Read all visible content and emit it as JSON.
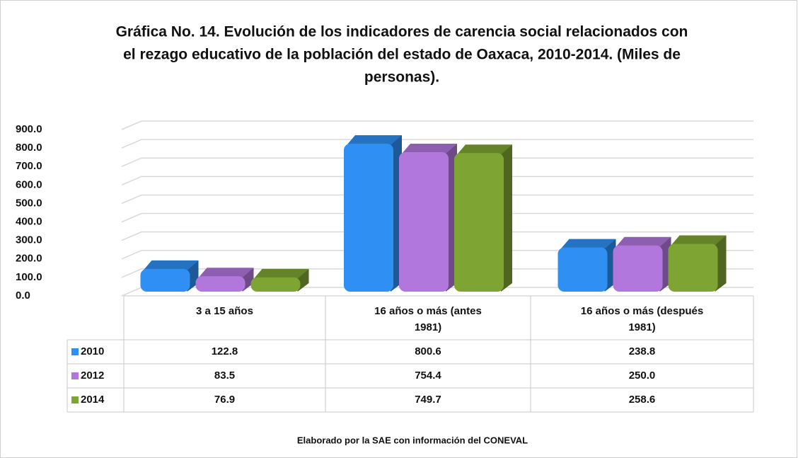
{
  "chart_data": {
    "type": "bar",
    "title": [
      "Gráfica No. 14. Evolución de los indicadores de carencia social relacionados con",
      "el rezago educativo de la población del estado de Oaxaca, 2010-2014. (Miles de",
      "personas)."
    ],
    "categories": [
      [
        "3 a 15 años"
      ],
      [
        "16 años o más (antes",
        "1981)"
      ],
      [
        "16 años o más (después",
        "1981)"
      ]
    ],
    "series": [
      {
        "name": "2010",
        "color": "#2f8ff2",
        "values": [
          122.8,
          800.6,
          238.8
        ],
        "value_labels": [
          "122.8",
          "800.6",
          "238.8"
        ]
      },
      {
        "name": "2012",
        "color": "#b277dc",
        "values": [
          83.5,
          754.4,
          250.0
        ],
        "value_labels": [
          "83.5",
          "754.4",
          "250.0"
        ]
      },
      {
        "name": "2014",
        "color": "#7ea534",
        "values": [
          76.9,
          749.7,
          258.6
        ],
        "value_labels": [
          "76.9",
          "749.7",
          "258.6"
        ]
      }
    ],
    "ylim": [
      0,
      900
    ],
    "yticks": [
      {
        "value": 0,
        "label": "0.0"
      },
      {
        "value": 100,
        "label": "100.0"
      },
      {
        "value": 200,
        "label": "200.0"
      },
      {
        "value": 300,
        "label": "300.0"
      },
      {
        "value": 400,
        "label": "400.0"
      },
      {
        "value": 500,
        "label": "500.0"
      },
      {
        "value": 600,
        "label": "600.0"
      },
      {
        "value": 700,
        "label": "700.0"
      },
      {
        "value": 800,
        "label": "800.0"
      },
      {
        "value": 900,
        "label": "900.0"
      }
    ],
    "grid": true,
    "source": "Elaborado por la SAE con información del CONEVAL"
  }
}
